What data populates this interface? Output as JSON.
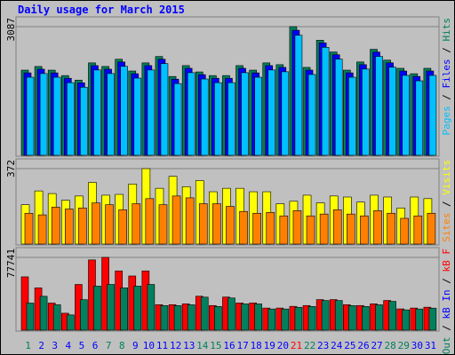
{
  "chart_data": [
    {
      "type": "bar",
      "title": "Daily usage for March 2015",
      "ylim": [
        0,
        3087
      ],
      "yticks": [
        3087
      ],
      "legend_separator": " / ",
      "series": [
        {
          "name": "Hits",
          "color": "#00805c",
          "values": [
            2043,
            2131,
            2043,
            1913,
            1804,
            2217,
            2131,
            2304,
            2022,
            2217,
            2370,
            1891,
            2152,
            2000,
            1913,
            1913,
            2152,
            2043,
            2217,
            2174,
            3087,
            2109,
            2761,
            2478,
            2043,
            2239,
            2543,
            2283,
            2087,
            1957,
            2087
          ]
        },
        {
          "name": "Files",
          "color": "#0000ff",
          "values": [
            1978,
            2066,
            1978,
            1848,
            1739,
            2152,
            2066,
            2239,
            1957,
            2152,
            2305,
            1826,
            2087,
            1935,
            1848,
            1848,
            2087,
            1978,
            2152,
            2109,
            3000,
            2044,
            2696,
            2413,
            1978,
            2174,
            2478,
            2218,
            2022,
            1892,
            2022
          ]
        },
        {
          "name": "Pages",
          "color": "#00c0ff",
          "values": [
            1873,
            1961,
            1873,
            1743,
            1634,
            2047,
            1961,
            2134,
            1852,
            2047,
            2200,
            1721,
            1982,
            1830,
            1743,
            1743,
            1982,
            1873,
            2047,
            2004,
            2880,
            1939,
            2591,
            2308,
            1873,
            2069,
            2373,
            2113,
            1917,
            1787,
            1917
          ]
        }
      ]
    },
    {
      "type": "bar",
      "ylim": [
        0,
        372
      ],
      "yticks": [
        372
      ],
      "legend_separator": " / ",
      "series": [
        {
          "name": "Visits",
          "color": "#ffff00",
          "values": [
            194,
            262,
            249,
            216,
            237,
            304,
            241,
            245,
            296,
            372,
            275,
            334,
            283,
            313,
            258,
            275,
            275,
            258,
            258,
            199,
            211,
            241,
            203,
            237,
            232,
            207,
            241,
            232,
            178,
            232,
            224
          ]
        },
        {
          "name": "Sites",
          "color": "#ff8000",
          "values": [
            152,
            144,
            182,
            173,
            178,
            203,
            194,
            169,
            199,
            224,
            194,
            237,
            228,
            199,
            199,
            186,
            161,
            152,
            156,
            139,
            165,
            139,
            148,
            169,
            148,
            139,
            165,
            152,
            127,
            139,
            152
          ]
        }
      ]
    },
    {
      "type": "bar",
      "ylim": [
        0,
        77741
      ],
      "yticks": [
        77741
      ],
      "legend_separator": " / ",
      "categories": [
        "1",
        "2",
        "3",
        "4",
        "5",
        "6",
        "7",
        "8",
        "9",
        "10",
        "11",
        "12",
        "13",
        "14",
        "15",
        "16",
        "17",
        "18",
        "19",
        "20",
        "21",
        "22",
        "23",
        "24",
        "25",
        "26",
        "27",
        "28",
        "29",
        "30",
        "31"
      ],
      "category_colors": [
        "#00805c",
        "#0000ff",
        "#0000ff",
        "#0000ff",
        "#0000ff",
        "#0000ff",
        "#00805c",
        "#00805c",
        "#0000ff",
        "#0000ff",
        "#0000ff",
        "#0000ff",
        "#0000ff",
        "#00805c",
        "#00805c",
        "#0000ff",
        "#0000ff",
        "#0000ff",
        "#0000ff",
        "#0000ff",
        "#ff0000",
        "#00805c",
        "#0000ff",
        "#0000ff",
        "#0000ff",
        "#0000ff",
        "#0000ff",
        "#00805c",
        "#00805c",
        "#0000ff",
        "#0000ff"
      ],
      "series": [
        {
          "name": "kB F",
          "color": "#ff0000",
          "values": [
            56952,
            45200,
            28928,
            18080,
            48816,
            75032,
            77741,
            63280,
            57856,
            63280,
            27216,
            27216,
            28120,
            36256,
            26312,
            35352,
            29024,
            29024,
            23600,
            23600,
            25408,
            26312,
            32640,
            32640,
            27216,
            26312,
            28120,
            31736,
            22696,
            23600,
            24504
          ]
        },
        {
          "name": "kB In",
          "color": "#0000ff",
          "values": [
            0,
            0,
            0,
            0,
            0,
            0,
            0,
            0,
            0,
            0,
            0,
            0,
            0,
            0,
            0,
            0,
            0,
            0,
            0,
            0,
            0,
            0,
            0,
            0,
            0,
            0,
            0,
            0,
            0,
            0,
            0
          ]
        },
        {
          "name": "kB Out",
          "color": "#00805c",
          "values": [
            28928,
            36160,
            27120,
            16272,
            32544,
            47008,
            48816,
            45200,
            47008,
            48816,
            26216,
            26216,
            27120,
            35256,
            25312,
            34352,
            28024,
            28024,
            22600,
            22600,
            24408,
            25312,
            31640,
            31640,
            26216,
            25312,
            27120,
            30736,
            21696,
            22600,
            23504
          ]
        }
      ]
    }
  ]
}
